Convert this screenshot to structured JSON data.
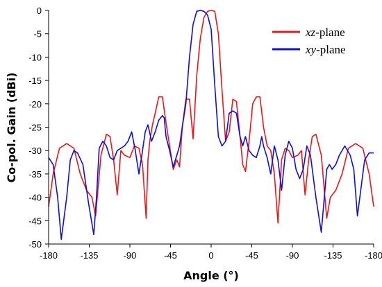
{
  "chart_data": {
    "type": "line",
    "xlabel": "Angle (°)",
    "ylabel": "Co-pol. Gain (dBi)",
    "xlim": [
      -180,
      180
    ],
    "ylim": [
      -50,
      0
    ],
    "grid": false,
    "legend_position": "top-right",
    "x_ticks": [
      -180,
      -135,
      -90,
      -45,
      0,
      45,
      90,
      135,
      180
    ],
    "x_tick_labels": [
      "-180",
      "-135",
      "-90",
      "-45",
      "0",
      "-45",
      "-90",
      "-135",
      "-180"
    ],
    "y_ticks": [
      0,
      -5,
      -10,
      -15,
      -20,
      -25,
      -30,
      -35,
      -40,
      -45,
      -50
    ],
    "y_tick_labels": [
      "0",
      "-5",
      "-10",
      "-15",
      "-20",
      "-25",
      "-30",
      "-35",
      "-40",
      "-45",
      "-50"
    ],
    "series": [
      {
        "name_italic": "xz",
        "name_suffix": "-plane",
        "color": "#e41a1c",
        "x": [
          -180,
          -175,
          -168,
          -160,
          -152,
          -145,
          -138,
          -132,
          -128,
          -122,
          -116,
          -112,
          -108,
          -104,
          -100,
          -96,
          -90,
          -85,
          -80,
          -76,
          -72,
          -70,
          -68,
          -65,
          -62,
          -58,
          -54,
          -50,
          -46,
          -42,
          -38,
          -35,
          -32,
          -28,
          -24,
          -20,
          -16,
          -12,
          -8,
          -4,
          0,
          4,
          8,
          12,
          16,
          20,
          24,
          28,
          32,
          35,
          38,
          42,
          46,
          50,
          54,
          58,
          62,
          66,
          70,
          74,
          78,
          82,
          86,
          90,
          96,
          100,
          104,
          108,
          112,
          116,
          122,
          128,
          132,
          138,
          145,
          152,
          160,
          168,
          175,
          180
        ],
        "y": [
          -42,
          -35,
          -29.5,
          -28.5,
          -29.5,
          -35,
          -38.5,
          -40,
          -44,
          -31,
          -26.5,
          -27,
          -32,
          -39.5,
          -30,
          -31,
          -31.5,
          -29,
          -29.5,
          -33,
          -44.5,
          -32,
          -28,
          -24.5,
          -22,
          -18.5,
          -18.5,
          -24,
          -29,
          -34,
          -32,
          -33.5,
          -25,
          -19,
          -19,
          -27.5,
          -14,
          -6,
          -1.5,
          -0.2,
          0,
          -0.2,
          -5,
          -17,
          -28,
          -26,
          -19,
          -19.5,
          -27,
          -33,
          -34.5,
          -28,
          -20,
          -18.5,
          -18.5,
          -25,
          -29,
          -30,
          -35,
          -45.5,
          -32,
          -29.5,
          -30,
          -31.5,
          -31,
          -30,
          -39.5,
          -32,
          -27,
          -26.5,
          -31,
          -44.5,
          -40,
          -38.5,
          -35,
          -29.5,
          -28.5,
          -29.5,
          -35,
          -42
        ]
      },
      {
        "name_italic": "xy",
        "name_suffix": "-plane",
        "color": "#1010d0",
        "x": [
          -180,
          -175,
          -170,
          -166,
          -160,
          -156,
          -152,
          -148,
          -142,
          -136,
          -130,
          -127,
          -124,
          -120,
          -116,
          -112,
          -108,
          -104,
          -100,
          -96,
          -92,
          -88,
          -84,
          -80,
          -76,
          -73,
          -70,
          -66,
          -62,
          -58,
          -54,
          -52,
          -50,
          -46,
          -42,
          -38,
          -35,
          -32,
          -28,
          -24,
          -20,
          -16,
          -12,
          -8,
          -4,
          0,
          4,
          8,
          12,
          16,
          20,
          24,
          28,
          32,
          35,
          38,
          42,
          46,
          50,
          54,
          56,
          58,
          62,
          66,
          70,
          74,
          78,
          82,
          86,
          90,
          94,
          98,
          102,
          106,
          110,
          116,
          122,
          128,
          131,
          134,
          138,
          142,
          148,
          154,
          158,
          162,
          166,
          170,
          175,
          180
        ],
        "y": [
          -31.5,
          -33,
          -40,
          -49,
          -40,
          -32,
          -30,
          -30.5,
          -33,
          -41,
          -48,
          -40,
          -29.5,
          -28,
          -29,
          -31.5,
          -32,
          -30,
          -29.5,
          -29,
          -28,
          -26,
          -30,
          -35,
          -30,
          -26,
          -24.5,
          -28,
          -26,
          -23.5,
          -22.5,
          -23,
          -27,
          -30,
          -33.5,
          -31,
          -29,
          -25,
          -20,
          -10,
          -3,
          -0.2,
          0,
          -0.2,
          -1,
          -4,
          -16,
          -27,
          -29,
          -28,
          -22,
          -21.5,
          -22,
          -27,
          -29,
          -27,
          -30,
          -31,
          -31.5,
          -29,
          -27,
          -29,
          -31.5,
          -35,
          -29,
          -32,
          -38.5,
          -31,
          -28,
          -29.5,
          -34,
          -36,
          -34,
          -29,
          -31,
          -40,
          -47.5,
          -34,
          -33,
          -34,
          -33,
          -31,
          -29,
          -31,
          -34,
          -44,
          -38,
          -32,
          -30.5,
          -30.5
        ]
      }
    ]
  }
}
